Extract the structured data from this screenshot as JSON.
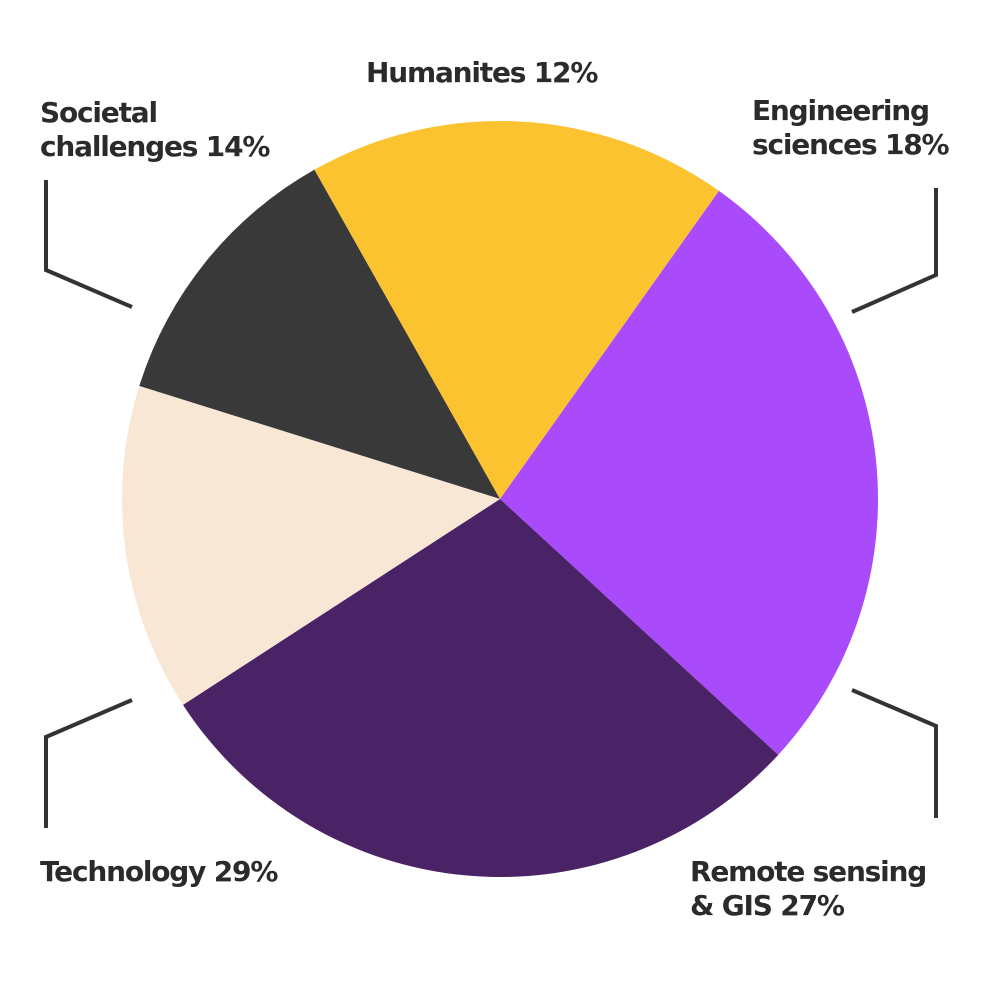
{
  "colors": {
    "background": "#ffffff",
    "text": "#2b2b2b",
    "leader": "#333333"
  },
  "chart_data": {
    "type": "pie",
    "title": "",
    "slices": [
      {
        "category": "Humanites",
        "value": 12,
        "label_line1": "Humanites 12%",
        "label_line2": "",
        "color": "#393939"
      },
      {
        "category": "Engineering sciences",
        "value": 18,
        "label_line1": "Engineering",
        "label_line2": "sciences 18%",
        "color": "#fcc330"
      },
      {
        "category": "Remote sensing & GIS",
        "value": 27,
        "label_line1": "Remote sensing",
        "label_line2": "& GIS 27%",
        "color": "#a94bfa"
      },
      {
        "category": "Technology",
        "value": 29,
        "label_line1": "Technology 29%",
        "label_line2": "",
        "color": "#4a2366"
      },
      {
        "category": "Societal challenges",
        "value": 14,
        "label_line1": "Societal",
        "label_line2": "challenges 14%",
        "color": "#f8e7d5"
      }
    ],
    "legend": "none"
  }
}
